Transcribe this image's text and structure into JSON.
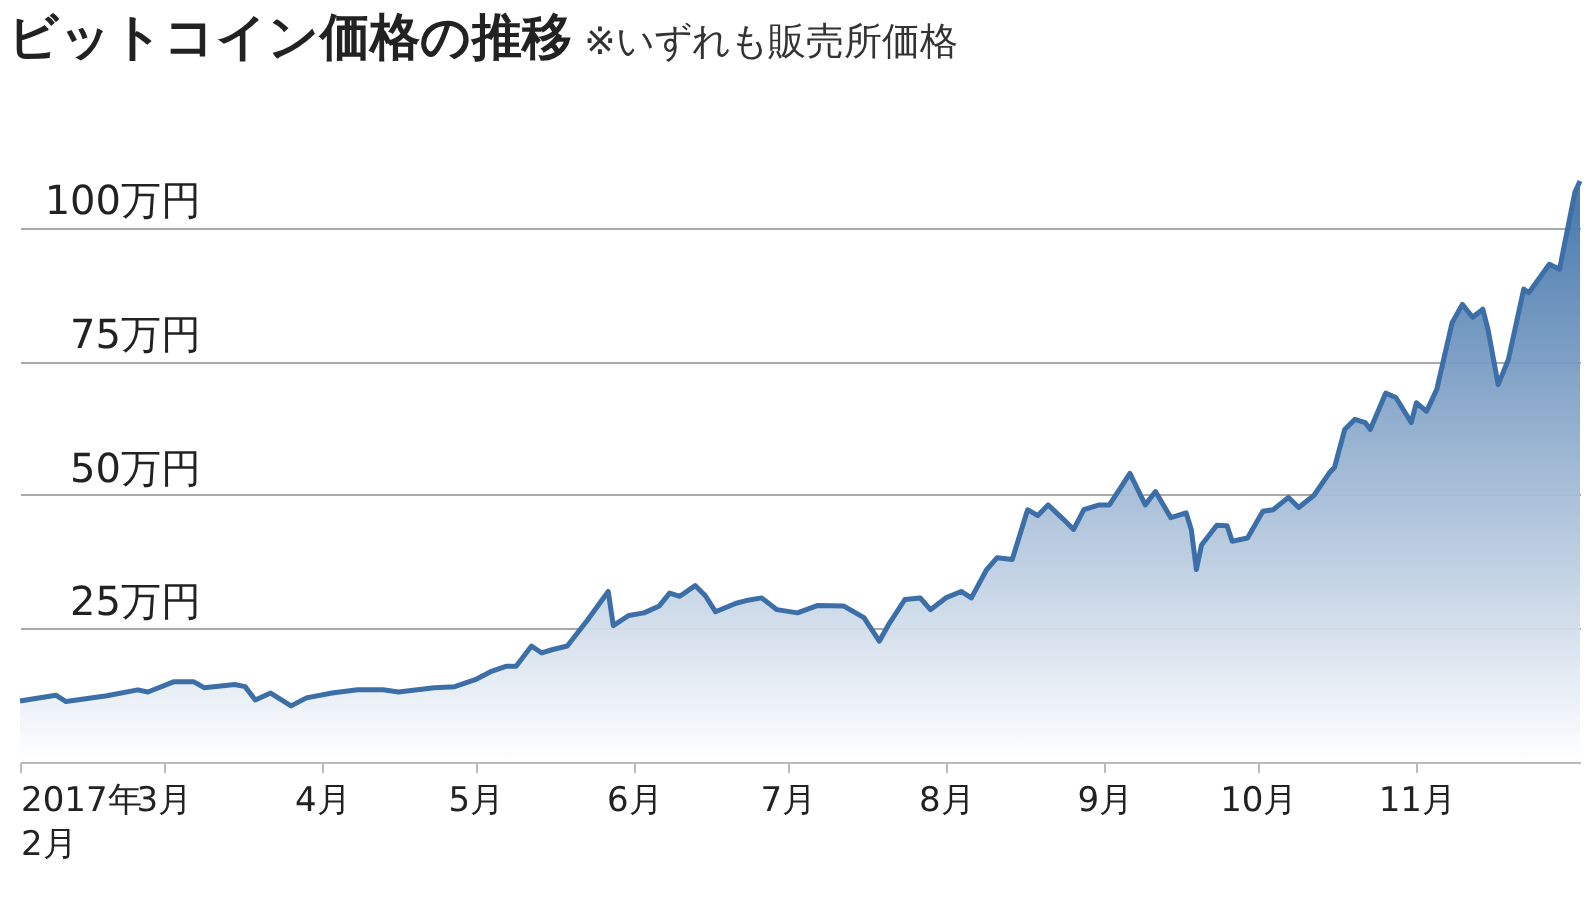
{
  "chart_data": {
    "type": "area",
    "title": "ビットコイン価格の推移",
    "subtitle": "※いずれも販売所価格",
    "xlim": [
      "2017-02-01",
      "2017-12-03"
    ],
    "xticks": [
      {
        "value": "2017-02-01",
        "label": "2017年\n2月"
      },
      {
        "value": "2017-03-01",
        "label": "3月"
      },
      {
        "value": "2017-04-01",
        "label": "4月"
      },
      {
        "value": "2017-05-01",
        "label": "5月"
      },
      {
        "value": "2017-06-01",
        "label": "6月"
      },
      {
        "value": "2017-07-01",
        "label": "7月"
      },
      {
        "value": "2017-08-01",
        "label": "8月"
      },
      {
        "value": "2017-09-01",
        "label": "9月"
      },
      {
        "value": "2017-10-01",
        "label": "10月"
      },
      {
        "value": "2017-11-01",
        "label": "11月"
      }
    ],
    "ylim": [
      0,
      110
    ],
    "yticks": [
      {
        "value": 25,
        "label": "25万円"
      },
      {
        "value": 50,
        "label": "50万円"
      },
      {
        "value": 75,
        "label": "75万円"
      },
      {
        "value": 100,
        "label": "100万円"
      }
    ],
    "grid": "y",
    "x": [
      "2017-02-01",
      "2017-02-08",
      "2017-02-10",
      "2017-02-18",
      "2017-02-24",
      "2017-02-26",
      "2017-03-03",
      "2017-03-07",
      "2017-03-09",
      "2017-03-15",
      "2017-03-17",
      "2017-03-19",
      "2017-03-22",
      "2017-03-26",
      "2017-03-29",
      "2017-04-03",
      "2017-04-08",
      "2017-04-13",
      "2017-04-16",
      "2017-04-23",
      "2017-04-27",
      "2017-05-01",
      "2017-05-04",
      "2017-05-07",
      "2017-05-09",
      "2017-05-12",
      "2017-05-14",
      "2017-05-16",
      "2017-05-19",
      "2017-05-23",
      "2017-05-27",
      "2017-05-28",
      "2017-05-31",
      "2017-06-03",
      "2017-06-06",
      "2017-06-08",
      "2017-06-10",
      "2017-06-13",
      "2017-06-15",
      "2017-06-17",
      "2017-06-21",
      "2017-06-23",
      "2017-06-26",
      "2017-06-29",
      "2017-07-03",
      "2017-07-07",
      "2017-07-12",
      "2017-07-16",
      "2017-07-19",
      "2017-07-21",
      "2017-07-24",
      "2017-07-27",
      "2017-07-29",
      "2017-08-01",
      "2017-08-04",
      "2017-08-06",
      "2017-08-09",
      "2017-08-11",
      "2017-08-14",
      "2017-08-17",
      "2017-08-19",
      "2017-08-21",
      "2017-08-24",
      "2017-08-26",
      "2017-08-28",
      "2017-08-31",
      "2017-09-02",
      "2017-09-06",
      "2017-09-09",
      "2017-09-11",
      "2017-09-14",
      "2017-09-17",
      "2017-09-18",
      "2017-09-19",
      "2017-09-20",
      "2017-09-23",
      "2017-09-25",
      "2017-09-26",
      "2017-09-29",
      "2017-10-02",
      "2017-10-04",
      "2017-10-07",
      "2017-10-09",
      "2017-10-12",
      "2017-10-15",
      "2017-10-16",
      "2017-10-18",
      "2017-10-20",
      "2017-10-22",
      "2017-10-23",
      "2017-10-26",
      "2017-10-28",
      "2017-10-31",
      "2017-11-01",
      "2017-11-03",
      "2017-11-05",
      "2017-11-08",
      "2017-11-10",
      "2017-11-12",
      "2017-11-14",
      "2017-11-15",
      "2017-11-17",
      "2017-11-19",
      "2017-11-22",
      "2017-11-23",
      "2017-11-27",
      "2017-11-29",
      "2017-12-02",
      "2017-12-03"
    ],
    "series": [
      {
        "color": "#3c6fa8",
        "values": [
          11.4,
          12.5,
          11.3,
          12.4,
          13.5,
          13.1,
          15,
          15,
          13.9,
          14.5,
          14.1,
          11.6,
          12.9,
          10.5,
          12,
          12.9,
          13.5,
          13.5,
          13.1,
          13.9,
          14.1,
          15.4,
          16.9,
          17.9,
          17.9,
          21.7,
          20.4,
          21,
          21.7,
          26.6,
          31.9,
          25.5,
          27.4,
          27.9,
          29.2,
          31.6,
          31,
          33,
          31.1,
          28.1,
          29.7,
          30.2,
          30.7,
          28.5,
          27.9,
          29.3,
          29.2,
          27,
          22.6,
          26,
          30.4,
          30.7,
          28.5,
          30.7,
          31.9,
          30.7,
          36,
          38.2,
          37.9,
          47.2,
          46.1,
          48.1,
          45.4,
          43.5,
          47.2,
          48.1,
          48.1,
          54,
          48.1,
          50.6,
          45.7,
          46.6,
          43.5,
          36,
          40.6,
          44.3,
          44.2,
          41.3,
          41.9,
          46.9,
          47.2,
          49.5,
          47.6,
          49.9,
          54.1,
          55.1,
          62.2,
          64.1,
          63.5,
          62.2,
          69,
          68.2,
          63.5,
          67.2,
          65.6,
          69.7,
          82.2,
          85.6,
          83.2,
          84.7,
          81,
          70.6,
          75.3,
          88.5,
          87.8,
          93.1,
          92.2,
          106.6,
          108.7
        ]
      }
    ]
  }
}
